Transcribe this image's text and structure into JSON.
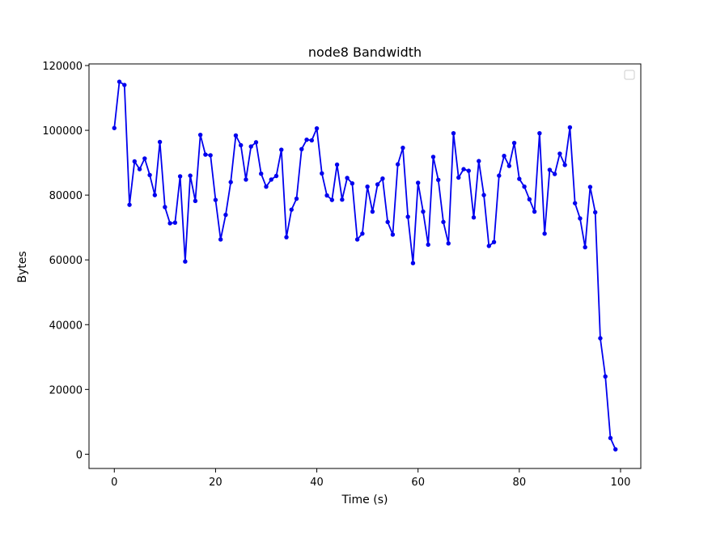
{
  "chart_data": {
    "type": "line",
    "title": "node8  Bandwidth",
    "xlabel": "Time (s)",
    "ylabel": "Bytes",
    "xlim": [
      -5,
      104
    ],
    "ylim": [
      -4400,
      120500
    ],
    "xticks": [
      0,
      20,
      40,
      60,
      80,
      100
    ],
    "yticks": [
      0,
      20000,
      40000,
      60000,
      80000,
      100000,
      120000
    ],
    "xtick_labels": [
      "0",
      "20",
      "40",
      "60",
      "80",
      "100"
    ],
    "ytick_labels": [
      "0",
      "20000",
      "40000",
      "60000",
      "80000",
      "100000",
      "120000"
    ],
    "grid": false,
    "legend": {
      "placement": "top-right",
      "entries": []
    },
    "colors": {
      "series": "#0000ee",
      "axes": "#000000",
      "background": "#ffffff"
    },
    "series": [
      {
        "marker": "circle",
        "x": [
          0,
          1,
          2,
          3,
          4,
          5,
          6,
          7,
          8,
          9,
          10,
          11,
          12,
          13,
          14,
          15,
          16,
          17,
          18,
          19,
          20,
          21,
          22,
          23,
          24,
          25,
          26,
          27,
          28,
          29,
          30,
          31,
          32,
          33,
          34,
          35,
          36,
          37,
          38,
          39,
          40,
          41,
          42,
          43,
          44,
          45,
          46,
          47,
          48,
          49,
          50,
          51,
          52,
          53,
          54,
          55,
          56,
          57,
          58,
          59,
          60,
          61,
          62,
          63,
          64,
          65,
          66,
          67,
          68,
          69,
          70,
          71,
          72,
          73,
          74,
          75,
          76,
          77,
          78,
          79,
          80,
          81,
          82,
          83,
          84,
          85,
          86,
          87,
          88,
          89,
          90,
          91,
          92,
          93,
          94,
          95,
          96,
          97,
          98,
          99
        ],
        "y": [
          100700,
          115000,
          114000,
          77000,
          90400,
          88000,
          91300,
          86200,
          80000,
          96400,
          76300,
          71300,
          71500,
          85800,
          59500,
          86000,
          78200,
          98600,
          92500,
          92300,
          78500,
          66300,
          73900,
          84000,
          98400,
          95400,
          84800,
          95000,
          96300,
          86600,
          82600,
          84800,
          85900,
          94000,
          67000,
          75500,
          78900,
          94200,
          97100,
          96900,
          100600,
          86700,
          79900,
          78500,
          89400,
          78600,
          85300,
          83600,
          66300,
          68100,
          82600,
          74900,
          83300,
          85100,
          71700,
          67800,
          89500,
          94600,
          73300,
          59000,
          83800,
          74900,
          64700,
          91800,
          84700,
          71700,
          65100,
          99100,
          85400,
          88000,
          87500,
          73100,
          90500,
          80000,
          64300,
          65500,
          86000,
          92100,
          89000,
          96100,
          85000,
          82600,
          78700,
          74900,
          99100,
          68100,
          87800,
          86500,
          92800,
          89300,
          100900,
          77500,
          72800,
          63900,
          82500,
          74700,
          35800,
          24000,
          5000,
          1500
        ]
      }
    ]
  }
}
